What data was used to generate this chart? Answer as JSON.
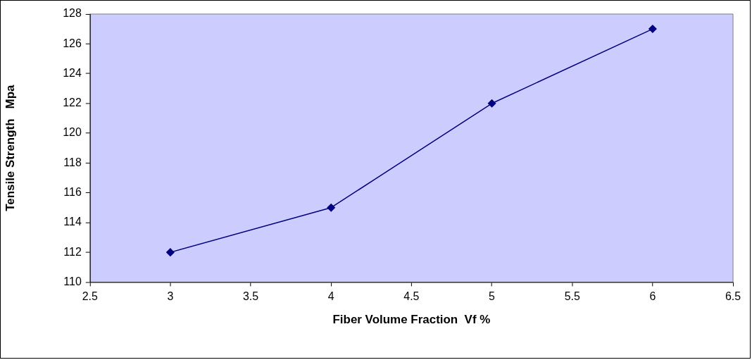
{
  "chart_data": {
    "type": "line",
    "xlabel": "Fiber Volume Fraction  Vf %",
    "ylabel": "Tensile Strength   Mpa",
    "x": [
      3,
      4,
      5,
      6
    ],
    "series": [
      {
        "color": "#000080",
        "values": [
          112,
          115,
          122,
          127
        ]
      }
    ],
    "xlim": [
      2.5,
      6.5
    ],
    "xticks": [
      2.5,
      3,
      3.5,
      4,
      4.5,
      5,
      5.5,
      6,
      6.5
    ],
    "ylim": [
      110,
      128
    ],
    "yticks": [
      110,
      112,
      114,
      116,
      118,
      120,
      122,
      124,
      126,
      128
    ],
    "grid": false,
    "legend": false,
    "marker": "diamond",
    "line_style": "solid"
  }
}
